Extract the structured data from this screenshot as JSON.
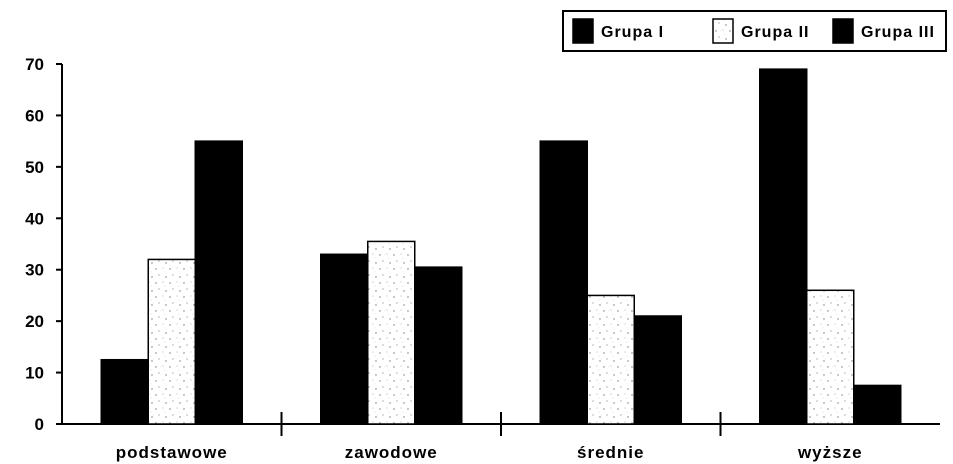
{
  "chart_data": {
    "type": "bar",
    "title": "",
    "xlabel": "",
    "ylabel": "",
    "categories": [
      "podstawowe",
      "zawodowe",
      "średnie",
      "wyższe"
    ],
    "series": [
      {
        "name": "Grupa I",
        "values": [
          12.5,
          33,
          55,
          69
        ],
        "color": "#000000",
        "fill": "solid"
      },
      {
        "name": "Grupa II",
        "values": [
          32,
          35.5,
          25,
          26
        ],
        "color": "#ffffff",
        "fill": "speckled"
      },
      {
        "name": "Grupa III",
        "values": [
          55,
          30.5,
          21,
          7.5
        ],
        "color": "#000000",
        "fill": "solid"
      }
    ],
    "ylim": [
      0,
      70
    ],
    "yticks": [
      0,
      10,
      20,
      30,
      40,
      50,
      60,
      70
    ],
    "grid": false,
    "legend_position": "top-right"
  }
}
